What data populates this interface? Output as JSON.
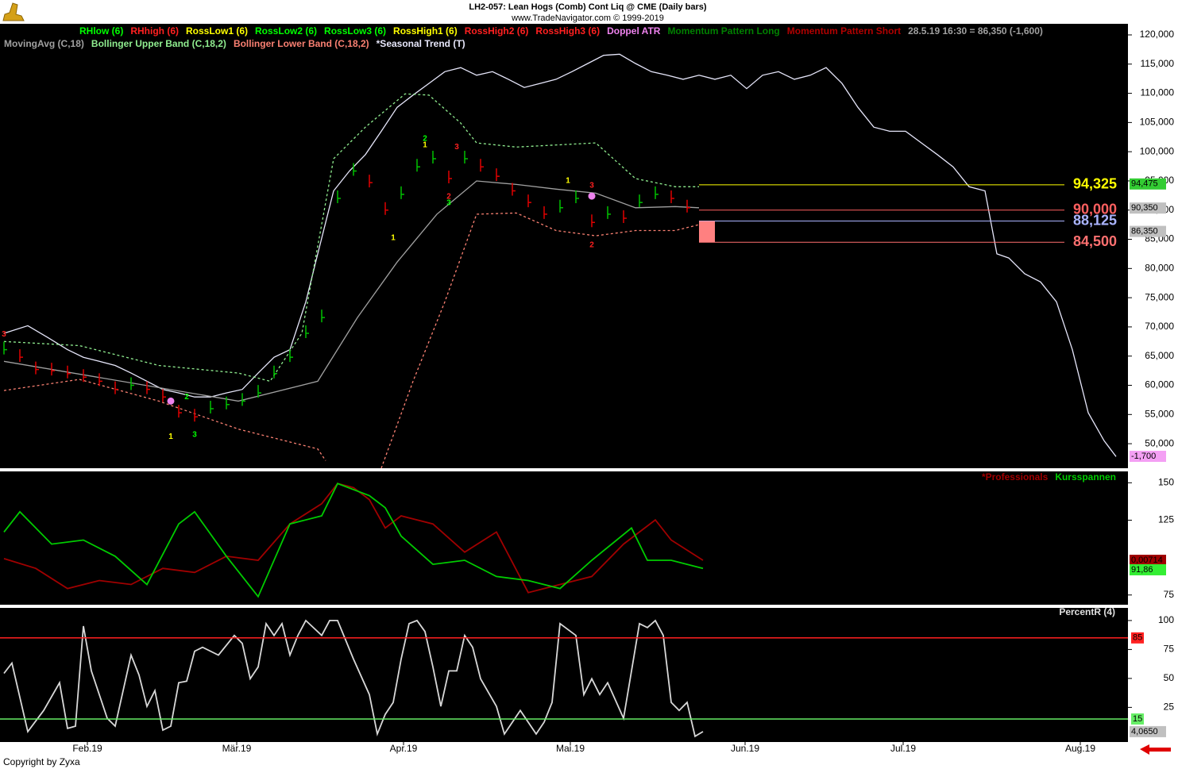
{
  "header": {
    "title": "LH2-057:  Lean Hogs (Comb) Cont Liq @ CME  (Daily bars)",
    "subtitle": "www.TradeNavigator.com © 1999-2019"
  },
  "footer": "Copyright by Zyxa",
  "chart_data": [
    {
      "type": "line",
      "legend": [
        [
          {
            "name": "RHlow (6)",
            "color": "#00ff00"
          },
          {
            "name": "RHhigh (6)",
            "color": "#ff2020"
          },
          {
            "name": "RossLow1 (6)",
            "color": "#ffff00"
          },
          {
            "name": "RossLow2 (6)",
            "color": "#00ff00"
          },
          {
            "name": "RossLow3 (6)",
            "color": "#00ff00"
          },
          {
            "name": "RossHigh1 (6)",
            "color": "#ffff00"
          },
          {
            "name": "RossHigh2 (6)",
            "color": "#ff2020"
          },
          {
            "name": "RossHigh3 (6)",
            "color": "#ff2020"
          },
          {
            "name": "Doppel ATR",
            "color": "#ee82ee"
          },
          {
            "name": "Momentum Pattern Long",
            "color": "#008000"
          },
          {
            "name": "Momentum Pattern Short",
            "color": "#b00000"
          }
        ],
        [
          {
            "name": "MovingAvg (C,18)",
            "color": "#a0a0a0"
          },
          {
            "name": "Bollinger Upper Band (C,18,2)",
            "color": "#90ee90"
          },
          {
            "name": "Bollinger Lower Band (C,18,2)",
            "color": "#fa8072"
          },
          {
            "name": "*Seasonal Trend (T)",
            "color": "#e6e6fa"
          }
        ]
      ],
      "info": "28.5.19 16:30 = 86,350 (-1,600)",
      "xlim": [
        -0.5,
        141.5
      ],
      "ylim": [
        45800,
        121900
      ],
      "yticks": [
        {
          "value": 50000,
          "label": "50,000"
        },
        {
          "value": 55000,
          "label": "55,000"
        },
        {
          "value": 60000,
          "label": "60,000"
        },
        {
          "value": 65000,
          "label": "65,000"
        },
        {
          "value": 70000,
          "label": "70,000"
        },
        {
          "value": 75000,
          "label": "75,000"
        },
        {
          "value": 80000,
          "label": "80,000"
        },
        {
          "value": 85000,
          "label": "85,000"
        },
        {
          "value": 90000,
          "label": "90,000"
        },
        {
          "value": 95000,
          "label": "95,000"
        },
        {
          "value": 100000,
          "label": "100,000"
        },
        {
          "value": 105000,
          "label": "105,000"
        },
        {
          "value": 110000,
          "label": "110,000"
        },
        {
          "value": 115000,
          "label": "115,000"
        },
        {
          "value": 120000,
          "label": "120,000"
        }
      ],
      "bars": {
        "up_color": "#00c000",
        "down_color": "#e00000",
        "x": [
          0,
          2,
          4,
          6,
          8,
          10,
          12,
          14,
          16,
          18,
          20,
          22,
          24,
          26,
          28,
          30,
          32,
          34,
          36,
          38,
          40,
          42,
          44,
          46,
          48,
          50,
          52,
          54,
          56,
          58,
          60,
          62,
          64,
          66,
          68,
          70,
          72,
          74,
          76,
          78,
          80,
          82,
          84,
          86,
          88
        ],
        "values": [
          66100,
          64800,
          62700,
          62500,
          62000,
          61400,
          60700,
          59300,
          60000,
          59300,
          58000,
          55300,
          54600,
          56000,
          56700,
          57300,
          58700,
          62000,
          64800,
          68900,
          71600,
          92000,
          96700,
          94700,
          90000,
          92700,
          97400,
          98800,
          95400,
          98800,
          97400,
          95800,
          93300,
          91300,
          89300,
          90400,
          92000,
          87900,
          89300,
          88600,
          91300,
          92700,
          92000,
          90400,
          86350
        ]
      },
      "series": [
        {
          "color": "#e6e6fa",
          "x": [
            0,
            3,
            5.5,
            8,
            10,
            12,
            14,
            16,
            18,
            20,
            22,
            24,
            26,
            28,
            30,
            32,
            34,
            36,
            38,
            39.5,
            41.5,
            43.5,
            45.5,
            47.5,
            49.5,
            51.5,
            53.5,
            55.5,
            57.5,
            59.5,
            61.5,
            63.5,
            65.5,
            67.5,
            69.5,
            71.5,
            73.5,
            75.5,
            77.5,
            79.5,
            81.5,
            83.5,
            85.5,
            87.5,
            89.5,
            91.5,
            93.5,
            95.5,
            97.5,
            99.5,
            101.5,
            103.5,
            105.5,
            107.5,
            109.5,
            111.5,
            113.5,
            115.5,
            117.5,
            119.5,
            121.5,
            123.5,
            125,
            126.5,
            128.5,
            130.5,
            132.5,
            134.5,
            136.5,
            138.5,
            140
          ],
          "values": [
            68900,
            70200,
            68200,
            66100,
            64800,
            64100,
            63400,
            62100,
            60700,
            59300,
            58700,
            58000,
            58000,
            58700,
            59300,
            62100,
            64800,
            66100,
            74300,
            82500,
            93300,
            96700,
            99500,
            103500,
            107600,
            109700,
            111700,
            113700,
            114400,
            113100,
            113700,
            112400,
            111000,
            111700,
            112400,
            113700,
            115100,
            116500,
            116700,
            115100,
            113700,
            113100,
            112400,
            113100,
            112400,
            113100,
            110800,
            113100,
            113700,
            112400,
            113100,
            114400,
            111700,
            107600,
            104200,
            103500,
            103500,
            101500,
            99500,
            97400,
            94000,
            93300,
            82500,
            81800,
            79100,
            77700,
            74300,
            66100,
            55300,
            50500,
            47800
          ]
        },
        {
          "color": "#a0a0a0",
          "x": [
            0,
            29.5,
            39.5,
            44.5,
            49.5,
            54.5,
            59.5,
            64.5,
            69.5,
            74.5,
            79.5,
            84.5,
            87.5
          ],
          "values": [
            64100,
            57300,
            60700,
            71600,
            81100,
            89300,
            95000,
            94400,
            93600,
            92900,
            90400,
            90600,
            90400
          ]
        },
        {
          "color": "#90ee90",
          "dash": true,
          "x": [
            0,
            9.5,
            19.5,
            29.5,
            33.5,
            37.5,
            41.5,
            45.5,
            50.5,
            53.5,
            57.5,
            59.5,
            64.5,
            74.5,
            79.5,
            84.5,
            87.5
          ],
          "values": [
            67500,
            66800,
            63400,
            62100,
            60700,
            68900,
            98800,
            104200,
            109900,
            109700,
            104900,
            101500,
            100800,
            101500,
            95400,
            94000,
            94000
          ]
        },
        {
          "color": "#fa8072",
          "dash": true,
          "x": [
            0,
            9.5,
            19.5,
            29.5,
            39.5,
            40.5,
            44,
            47.5,
            51.5,
            55.5,
            59.5,
            64.5,
            69.5,
            74.5,
            79.5,
            84.5,
            87.5
          ],
          "values": [
            59100,
            61000,
            57300,
            52500,
            49100,
            47100,
            null,
            45800,
            60700,
            74300,
            89300,
            89500,
            86500,
            85600,
            86500,
            86500,
            87500
          ]
        }
      ],
      "points": {
        "color": "#ee82ee",
        "x": [
          21,
          74
        ],
        "values": [
          57300,
          92400
        ]
      },
      "annotations": [
        {
          "x": 0,
          "value": 68700,
          "label": "3",
          "color": "#ff2020"
        },
        {
          "x": 21,
          "value": 51200,
          "label": "1",
          "color": "#ffff00"
        },
        {
          "x": 24,
          "value": 51500,
          "label": "3",
          "color": "#00ff00"
        },
        {
          "x": 23,
          "value": 58000,
          "label": "2",
          "color": "#00ff00"
        },
        {
          "x": 53,
          "value": 102200,
          "label": "2",
          "color": "#00ff00"
        },
        {
          "x": 53,
          "value": 101100,
          "label": "1",
          "color": "#ffff00"
        },
        {
          "x": 57,
          "value": 100800,
          "label": "3",
          "color": "#ff2020"
        },
        {
          "x": 56,
          "value": 92300,
          "label": "2",
          "color": "#ff2020"
        },
        {
          "x": 56,
          "value": 91200,
          "label": "3",
          "color": "#00ff00"
        },
        {
          "x": 49,
          "value": 85200,
          "label": "1",
          "color": "#ffff00"
        },
        {
          "x": 71,
          "value": 95000,
          "label": "1",
          "color": "#ffff00"
        },
        {
          "x": 74,
          "value": 94200,
          "label": "3",
          "color": "#ff2020"
        },
        {
          "x": 74,
          "value": 84000,
          "label": "2",
          "color": "#ff2020"
        }
      ],
      "levels": [
        {
          "value": 94325,
          "label": "94,325",
          "color": "#ffff00"
        },
        {
          "value": 90000,
          "label": "90,000",
          "color": "#ff6060"
        },
        {
          "value": 88125,
          "label": "88,125",
          "color": "#aab4ff"
        },
        {
          "value": 84500,
          "label": "84,500",
          "color": "#ff7070"
        }
      ],
      "right_labels": [
        {
          "value": 94475,
          "label": "94,475",
          "color": "#33cc33"
        },
        {
          "value": 90350,
          "label": "90,350",
          "color": "#c0c0c0"
        },
        {
          "value": 86350,
          "label": "86,350",
          "color": "#c0c0c0"
        },
        {
          "label": "-1,700",
          "color": "#f4a0f4"
        }
      ]
    },
    {
      "type": "line",
      "xlim": [
        -0.5,
        141.5
      ],
      "ylim": [
        68.5,
        157.6
      ],
      "yticks": [
        75,
        125,
        150
      ],
      "series": [
        {
          "name": "*Professionals",
          "color": "#a00000",
          "x": [
            0,
            4,
            8,
            12,
            16,
            20,
            24,
            28,
            32,
            36,
            40,
            42,
            44,
            46,
            48,
            50,
            54,
            58,
            62,
            66,
            70,
            74,
            78,
            82,
            84,
            88
          ],
          "values": [
            99.3,
            92.8,
            79.3,
            84.7,
            82.0,
            92.8,
            90.1,
            100.9,
            98.2,
            122.5,
            136.0,
            149.5,
            146.8,
            138.7,
            119.8,
            127.9,
            122.5,
            103.6,
            117.1,
            76.6,
            82.0,
            87.4,
            109.0,
            125.2,
            111.7,
            98.2
          ]
        },
        {
          "name": "Kursspannen",
          "color": "#00cc00",
          "x": [
            0,
            2,
            6,
            10,
            14,
            18,
            22,
            24,
            28,
            32,
            36,
            40,
            42,
            46,
            48,
            50,
            54,
            58,
            62,
            66,
            70,
            74,
            79,
            81,
            84,
            88
          ],
          "values": [
            117.1,
            130.6,
            109.0,
            111.7,
            100.9,
            82.0,
            122.5,
            130.6,
            100.9,
            73.9,
            122.5,
            127.9,
            149.5,
            141.4,
            133.3,
            114.4,
            95.5,
            98.2,
            87.4,
            84.7,
            79.3,
            98.2,
            119.8,
            98.2,
            98.2,
            92.8
          ]
        }
      ],
      "right_labels": [
        {
          "label": "0,00714",
          "color": "#a00000"
        },
        {
          "value": 91.86,
          "label": "91,86",
          "color": "#33ee33"
        }
      ]
    },
    {
      "type": "line",
      "title": "PercentR (4)",
      "xlim": [
        -0.5,
        141.5
      ],
      "ylim": [
        -4.9,
        110.9
      ],
      "yticks": [
        25,
        50,
        75,
        100
      ],
      "xticks": [
        {
          "value": 10.5,
          "label": "Feb.19"
        },
        {
          "value": 29.3,
          "label": "Mär.19"
        },
        {
          "value": 50.3,
          "label": "Apr.19"
        },
        {
          "value": 71.3,
          "label": "Mai.19"
        },
        {
          "value": 93.3,
          "label": "Jun.19"
        },
        {
          "value": 113.2,
          "label": "Jul.19"
        },
        {
          "value": 135.5,
          "label": "Aug.19"
        }
      ],
      "series": [
        {
          "color": "#d8d8d8",
          "x": [
            0,
            1,
            3,
            5,
            7,
            8,
            9,
            10,
            11,
            13,
            14,
            16,
            17,
            18,
            19,
            20,
            21,
            22,
            23,
            24,
            25,
            27,
            29,
            30,
            31,
            32,
            33,
            34,
            35,
            36,
            37,
            38,
            40,
            41,
            42,
            44,
            46,
            47,
            48,
            49,
            50,
            51,
            52,
            53,
            54,
            55,
            56,
            57,
            58,
            59,
            60,
            62,
            63,
            65,
            67,
            68,
            69,
            70,
            72,
            73,
            74,
            75,
            76,
            78,
            80,
            81,
            82,
            83,
            84,
            85,
            86,
            87,
            88
          ],
          "values": [
            54.4,
            63.3,
            4.1,
            22.4,
            46.3,
            6.8,
            8.8,
            95.2,
            56.5,
            15.6,
            8.8,
            70.1,
            53.0,
            25.9,
            39.5,
            5.4,
            8.8,
            46.3,
            47.6,
            73.5,
            76.9,
            70.1,
            87.1,
            80.3,
            49.7,
            59.9,
            97.3,
            87.1,
            97.3,
            70.1,
            87.1,
            100,
            87.1,
            100,
            100,
            66.7,
            36.1,
            2.0,
            19.0,
            29.3,
            66.7,
            97.3,
            100,
            90.5,
            59.9,
            25.9,
            56.5,
            56.5,
            87.1,
            76.9,
            49.7,
            25.9,
            2.0,
            22.4,
            2.0,
            12.2,
            29.3,
            97.3,
            87.1,
            36.1,
            49.7,
            36.1,
            46.3,
            15.6,
            97.3,
            93.9,
            100,
            87.1,
            29.3,
            22.4,
            29.3,
            0.0,
            4.1
          ]
        }
      ],
      "levels": [
        {
          "value": 85,
          "label": "85",
          "color": "#ff2020"
        },
        {
          "value": 15,
          "label": "15",
          "color": "#66ee66"
        }
      ],
      "right_labels": [
        {
          "value": 4.065,
          "label": "4,0650",
          "color": "#c0c0c0"
        }
      ]
    }
  ]
}
